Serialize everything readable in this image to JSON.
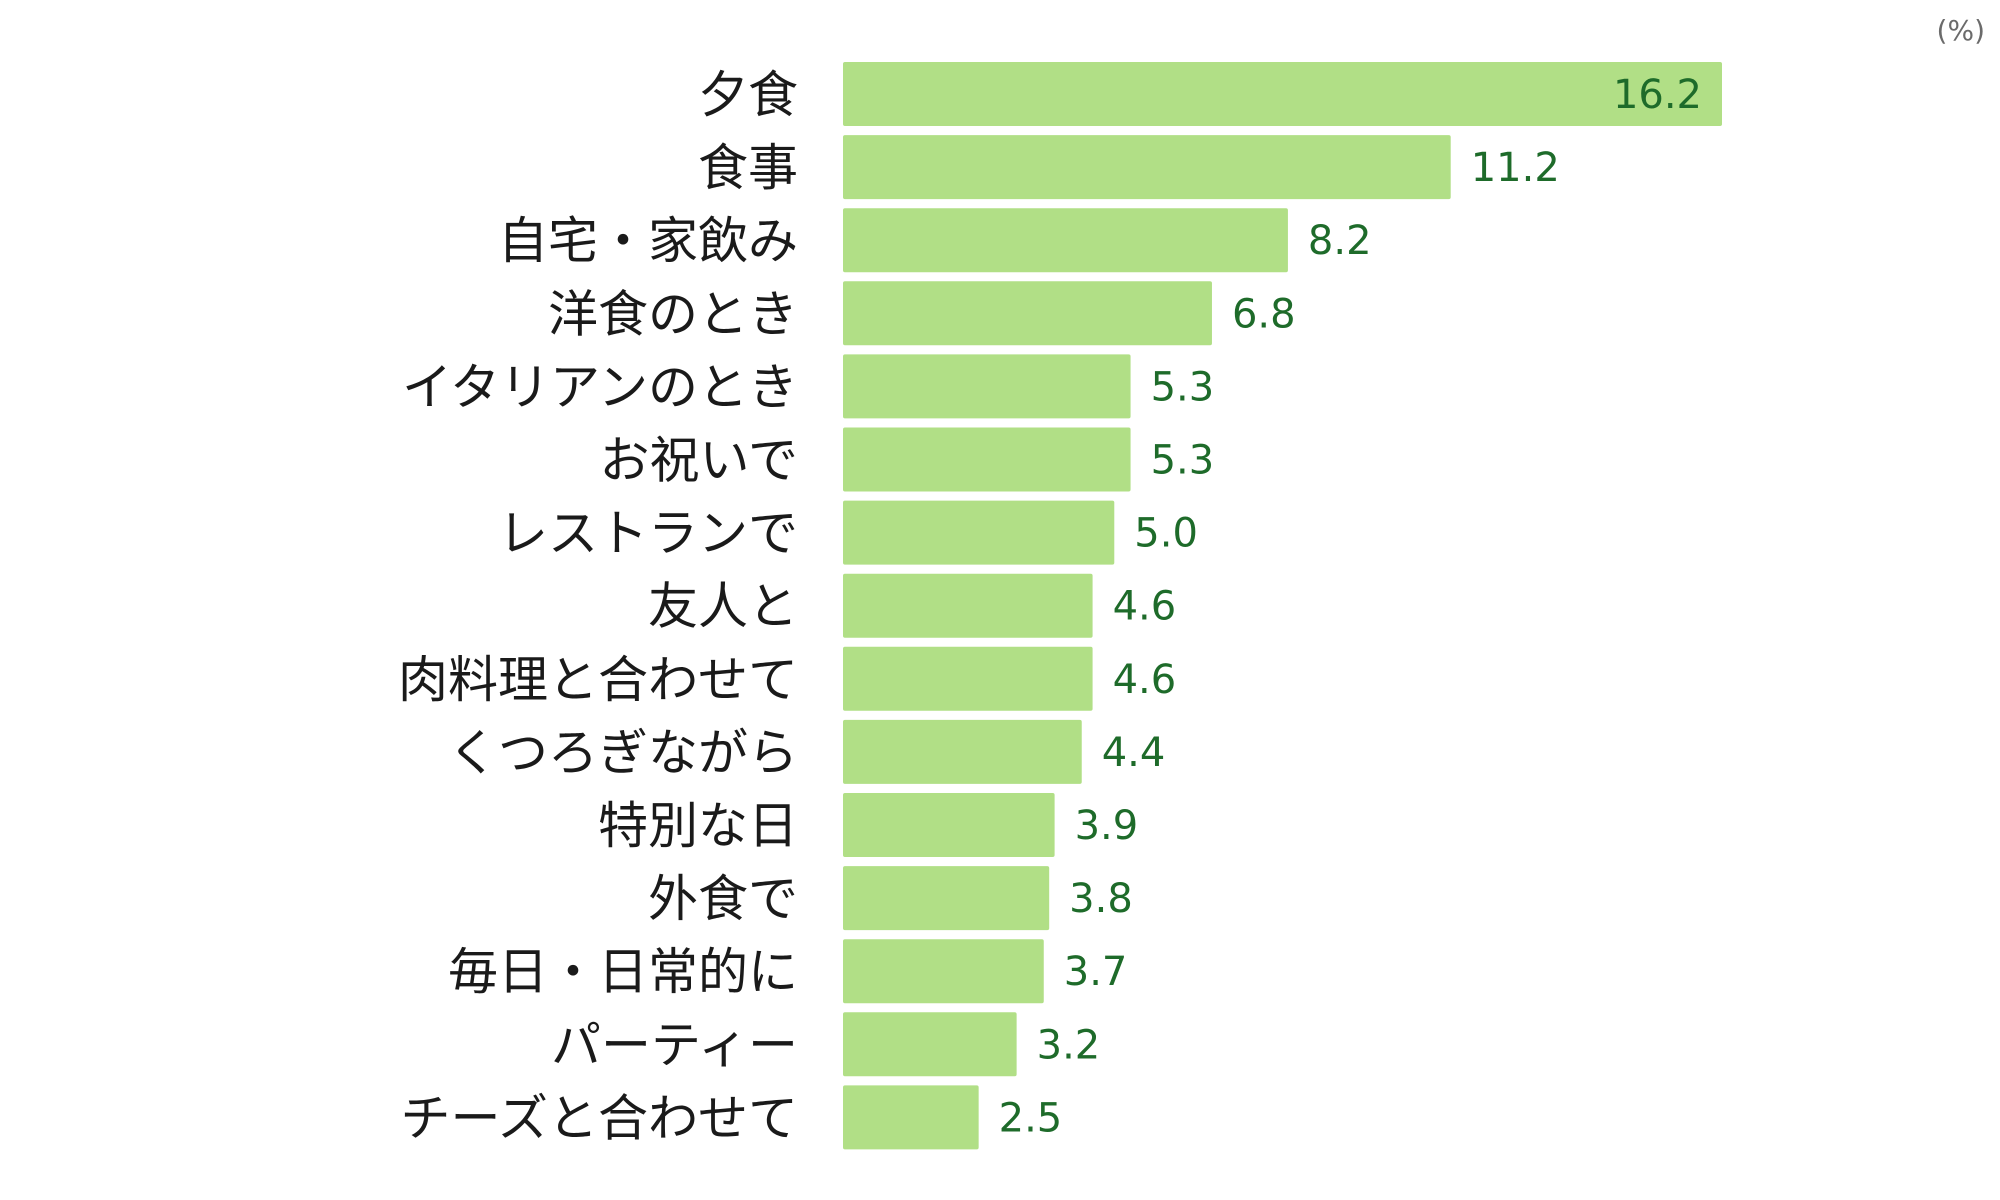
{
  "chart_data": {
    "type": "bar",
    "orientation": "horizontal",
    "unit_label": "(%)",
    "categories": [
      "夕食",
      "食事",
      "自宅・家飲み",
      "洋食のとき",
      "イタリアンのとき",
      "お祝いで",
      "レストランで",
      "友人と",
      "肉料理と合わせて",
      "くつろぎながら",
      "特別な日",
      "外食で",
      "毎日・日常的に",
      "パーティー",
      "チーズと合わせて"
    ],
    "values": [
      16.2,
      11.2,
      8.2,
      6.8,
      5.3,
      5.3,
      5.0,
      4.6,
      4.6,
      4.4,
      3.9,
      3.8,
      3.7,
      3.2,
      2.5
    ],
    "value_labels": [
      "16.2",
      "11.2",
      "8.2",
      "6.8",
      "5.3",
      "5.3",
      "5.0",
      "4.6",
      "4.6",
      "4.4",
      "3.9",
      "3.8",
      "3.7",
      "3.2",
      "2.5"
    ],
    "xlim": [
      0,
      16.2
    ],
    "grid": false,
    "legend": "none",
    "colors": {
      "bar": "#b1df86",
      "value_text": "#1e6b2a",
      "category_text": "#1a1a1a",
      "unit_text": "#6b6b6b"
    }
  }
}
